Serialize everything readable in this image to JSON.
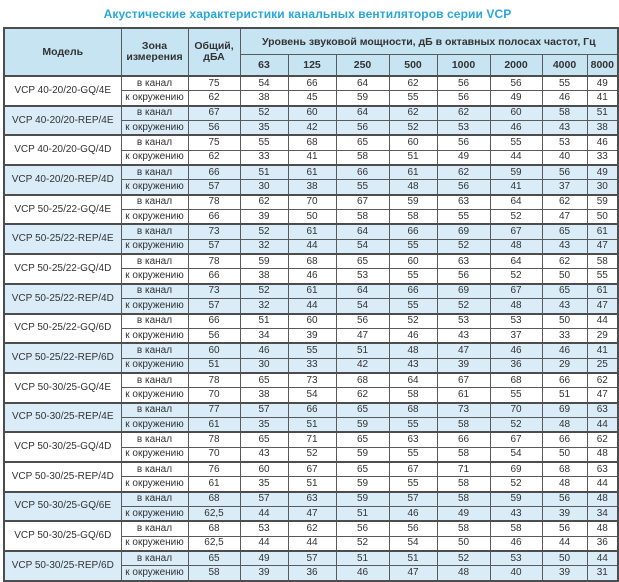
{
  "title": "Акустические характеристики канальных вентиляторов  серии VCP",
  "table": {
    "headers": {
      "model": "Модель",
      "zone": "Зона измерения",
      "total": "Общий, дБА",
      "octave_group": "Уровень звуковой мощности, дБ в октавных полосах частот, Гц",
      "frequencies": [
        "63",
        "125",
        "250",
        "500",
        "1000",
        "2000",
        "4000",
        "8000"
      ]
    },
    "zone_labels": {
      "duct": "в канал",
      "ambient": "к окружению"
    },
    "colors": {
      "title": "#29a7dc",
      "header_bg": "#c6e4f2",
      "shaded_row_bg": "#d9ecf7",
      "border": "#4d4d4d"
    },
    "rows": [
      {
        "model": "VCP 40-20/20-GQ/4E",
        "shaded": false,
        "duct": {
          "total": "75",
          "levels": [
            "54",
            "66",
            "64",
            "62",
            "56",
            "56",
            "55",
            "49"
          ]
        },
        "ambient": {
          "total": "62",
          "levels": [
            "38",
            "45",
            "59",
            "55",
            "56",
            "49",
            "46",
            "41"
          ]
        }
      },
      {
        "model": "VCP 40-20/20-REP/4E",
        "shaded": true,
        "duct": {
          "total": "67",
          "levels": [
            "52",
            "60",
            "64",
            "62",
            "62",
            "60",
            "58",
            "51"
          ]
        },
        "ambient": {
          "total": "56",
          "levels": [
            "35",
            "42",
            "56",
            "52",
            "53",
            "46",
            "43",
            "38"
          ]
        }
      },
      {
        "model": "VCP 40-20/20-GQ/4D",
        "shaded": false,
        "duct": {
          "total": "75",
          "levels": [
            "55",
            "68",
            "65",
            "60",
            "56",
            "55",
            "53",
            "46"
          ]
        },
        "ambient": {
          "total": "62",
          "levels": [
            "33",
            "41",
            "58",
            "51",
            "49",
            "44",
            "40",
            "33"
          ]
        }
      },
      {
        "model": "VCP 40-20/20-REP/4D",
        "shaded": true,
        "duct": {
          "total": "66",
          "levels": [
            "51",
            "61",
            "66",
            "61",
            "62",
            "59",
            "56",
            "49"
          ]
        },
        "ambient": {
          "total": "57",
          "levels": [
            "30",
            "38",
            "55",
            "48",
            "56",
            "41",
            "37",
            "30"
          ]
        }
      },
      {
        "model": "VCP 50-25/22-GQ/4E",
        "shaded": false,
        "duct": {
          "total": "78",
          "levels": [
            "62",
            "70",
            "67",
            "59",
            "63",
            "64",
            "62",
            "59"
          ]
        },
        "ambient": {
          "total": "66",
          "levels": [
            "39",
            "50",
            "58",
            "58",
            "55",
            "52",
            "47",
            "50"
          ]
        }
      },
      {
        "model": "VCP 50-25/22-REP/4E",
        "shaded": true,
        "duct": {
          "total": "73",
          "levels": [
            "52",
            "61",
            "64",
            "66",
            "69",
            "67",
            "65",
            "61"
          ]
        },
        "ambient": {
          "total": "57",
          "levels": [
            "32",
            "44",
            "54",
            "55",
            "52",
            "48",
            "43",
            "47"
          ]
        }
      },
      {
        "model": "VCP 50-25/22-GQ/4D",
        "shaded": false,
        "duct": {
          "total": "78",
          "levels": [
            "59",
            "68",
            "65",
            "60",
            "63",
            "64",
            "62",
            "58"
          ]
        },
        "ambient": {
          "total": "66",
          "levels": [
            "38",
            "46",
            "53",
            "55",
            "56",
            "52",
            "50",
            "55"
          ]
        }
      },
      {
        "model": "VCP 50-25/22-REP/4D",
        "shaded": true,
        "duct": {
          "total": "73",
          "levels": [
            "52",
            "61",
            "64",
            "66",
            "69",
            "67",
            "65",
            "61"
          ]
        },
        "ambient": {
          "total": "57",
          "levels": [
            "32",
            "44",
            "54",
            "55",
            "52",
            "48",
            "43",
            "47"
          ]
        }
      },
      {
        "model": "VCP 50-25/22-GQ/6D",
        "shaded": false,
        "duct": {
          "total": "66",
          "levels": [
            "51",
            "60",
            "56",
            "52",
            "53",
            "53",
            "50",
            "44"
          ]
        },
        "ambient": {
          "total": "56",
          "levels": [
            "34",
            "39",
            "47",
            "46",
            "43",
            "37",
            "33",
            "29"
          ]
        }
      },
      {
        "model": "VCP 50-25/22-REP/6D",
        "shaded": true,
        "duct": {
          "total": "60",
          "levels": [
            "46",
            "55",
            "51",
            "48",
            "47",
            "46",
            "46",
            "41"
          ]
        },
        "ambient": {
          "total": "51",
          "levels": [
            "30",
            "33",
            "42",
            "43",
            "39",
            "36",
            "29",
            "25"
          ]
        }
      },
      {
        "model": "VCP 50-30/25-GQ/4E",
        "shaded": false,
        "duct": {
          "total": "78",
          "levels": [
            "65",
            "73",
            "68",
            "64",
            "67",
            "68",
            "66",
            "62"
          ]
        },
        "ambient": {
          "total": "70",
          "levels": [
            "38",
            "54",
            "62",
            "58",
            "61",
            "55",
            "51",
            "47"
          ]
        }
      },
      {
        "model": "VCP 50-30/25-REP/4E",
        "shaded": true,
        "duct": {
          "total": "77",
          "levels": [
            "57",
            "66",
            "65",
            "68",
            "73",
            "70",
            "69",
            "63"
          ]
        },
        "ambient": {
          "total": "61",
          "levels": [
            "35",
            "51",
            "59",
            "55",
            "58",
            "52",
            "48",
            "44"
          ]
        }
      },
      {
        "model": "VCP 50-30/25-GQ/4D",
        "shaded": false,
        "duct": {
          "total": "78",
          "levels": [
            "65",
            "71",
            "65",
            "63",
            "66",
            "67",
            "66",
            "62"
          ]
        },
        "ambient": {
          "total": "70",
          "levels": [
            "43",
            "52",
            "59",
            "55",
            "58",
            "54",
            "50",
            "48"
          ]
        }
      },
      {
        "model": "VCP 50-30/25-REP/4D",
        "shaded": false,
        "duct": {
          "total": "76",
          "levels": [
            "60",
            "67",
            "65",
            "67",
            "71",
            "69",
            "68",
            "63"
          ]
        },
        "ambient": {
          "total": "61",
          "levels": [
            "35",
            "51",
            "59",
            "55",
            "58",
            "52",
            "48",
            "44"
          ]
        }
      },
      {
        "model": "VCP 50-30/25-GQ/6E",
        "shaded": true,
        "duct": {
          "total": "68",
          "levels": [
            "57",
            "63",
            "59",
            "57",
            "58",
            "59",
            "56",
            "48"
          ]
        },
        "ambient": {
          "total": "62,5",
          "levels": [
            "44",
            "47",
            "51",
            "46",
            "49",
            "43",
            "39",
            "34"
          ]
        }
      },
      {
        "model": "VCP 50-30/25-GQ/6D",
        "shaded": false,
        "duct": {
          "total": "68",
          "levels": [
            "53",
            "62",
            "56",
            "56",
            "58",
            "58",
            "56",
            "48"
          ]
        },
        "ambient": {
          "total": "62,5",
          "levels": [
            "44",
            "44",
            "52",
            "54",
            "50",
            "46",
            "44",
            "36"
          ]
        }
      },
      {
        "model": "VCP 50-30/25-REP/6D",
        "shaded": true,
        "duct": {
          "total": "65",
          "levels": [
            "49",
            "57",
            "51",
            "51",
            "52",
            "53",
            "50",
            "44"
          ]
        },
        "ambient": {
          "total": "58",
          "levels": [
            "39",
            "36",
            "46",
            "47",
            "48",
            "40",
            "39",
            "31"
          ]
        }
      }
    ]
  }
}
